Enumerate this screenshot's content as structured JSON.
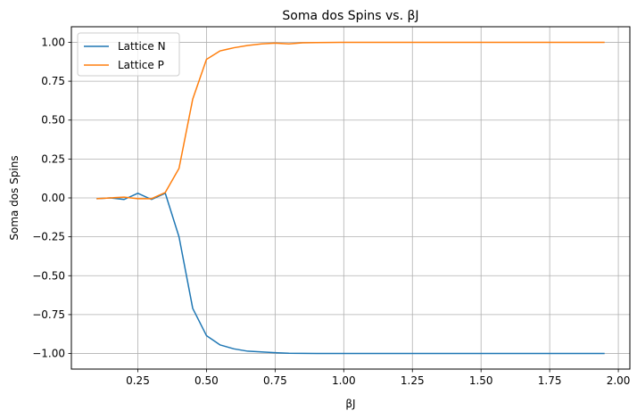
{
  "chart_data": {
    "type": "line",
    "title": "Soma dos Spins vs. βJ",
    "xlabel": "βJ",
    "ylabel": "Soma dos Spins",
    "xlim": [
      0.008,
      2.042
    ],
    "ylim": [
      -1.1,
      1.1
    ],
    "xticks": [
      0.25,
      0.5,
      0.75,
      1.0,
      1.25,
      1.5,
      1.75,
      2.0
    ],
    "xtick_labels": [
      "0.25",
      "0.50",
      "0.75",
      "1.00",
      "1.25",
      "1.50",
      "1.75",
      "2.00"
    ],
    "yticks": [
      -1.0,
      -0.75,
      -0.5,
      -0.25,
      0.0,
      0.25,
      0.5,
      0.75,
      1.0
    ],
    "ytick_labels": [
      "−1.00",
      "−0.75",
      "−0.50",
      "−0.25",
      "0.00",
      "0.25",
      "0.50",
      "0.75",
      "1.00"
    ],
    "grid": true,
    "legend_position": "top-left",
    "x": [
      0.1,
      0.15,
      0.2,
      0.25,
      0.3,
      0.35,
      0.4,
      0.45,
      0.5,
      0.55,
      0.6,
      0.65,
      0.7,
      0.75,
      0.8,
      0.85,
      0.9,
      0.95,
      1.0,
      1.05,
      1.1,
      1.15,
      1.2,
      1.25,
      1.3,
      1.35,
      1.4,
      1.45,
      1.5,
      1.55,
      1.6,
      1.65,
      1.7,
      1.75,
      1.8,
      1.85,
      1.9,
      1.95
    ],
    "series": [
      {
        "name": "Lattice N",
        "color": "#1f77b4",
        "values": [
          -0.005,
          0.0,
          -0.01,
          0.03,
          -0.01,
          0.03,
          -0.25,
          -0.71,
          -0.885,
          -0.945,
          -0.97,
          -0.985,
          -0.99,
          -0.995,
          -0.998,
          -0.999,
          -1.0,
          -1.0,
          -1.0,
          -1.0,
          -1.0,
          -1.0,
          -1.0,
          -1.0,
          -1.0,
          -1.0,
          -1.0,
          -1.0,
          -1.0,
          -1.0,
          -1.0,
          -1.0,
          -1.0,
          -1.0,
          -1.0,
          -1.0,
          -1.0,
          -1.0
        ]
      },
      {
        "name": "Lattice P",
        "color": "#ff7f0e",
        "values": [
          -0.005,
          0.0,
          0.005,
          -0.005,
          -0.005,
          0.035,
          0.19,
          0.635,
          0.89,
          0.945,
          0.965,
          0.98,
          0.99,
          0.995,
          0.99,
          0.997,
          0.998,
          0.999,
          1.0,
          1.0,
          1.0,
          1.0,
          1.0,
          1.0,
          1.0,
          1.0,
          1.0,
          1.0,
          1.0,
          1.0,
          1.0,
          1.0,
          1.0,
          1.0,
          1.0,
          1.0,
          1.0,
          1.0
        ]
      }
    ]
  }
}
